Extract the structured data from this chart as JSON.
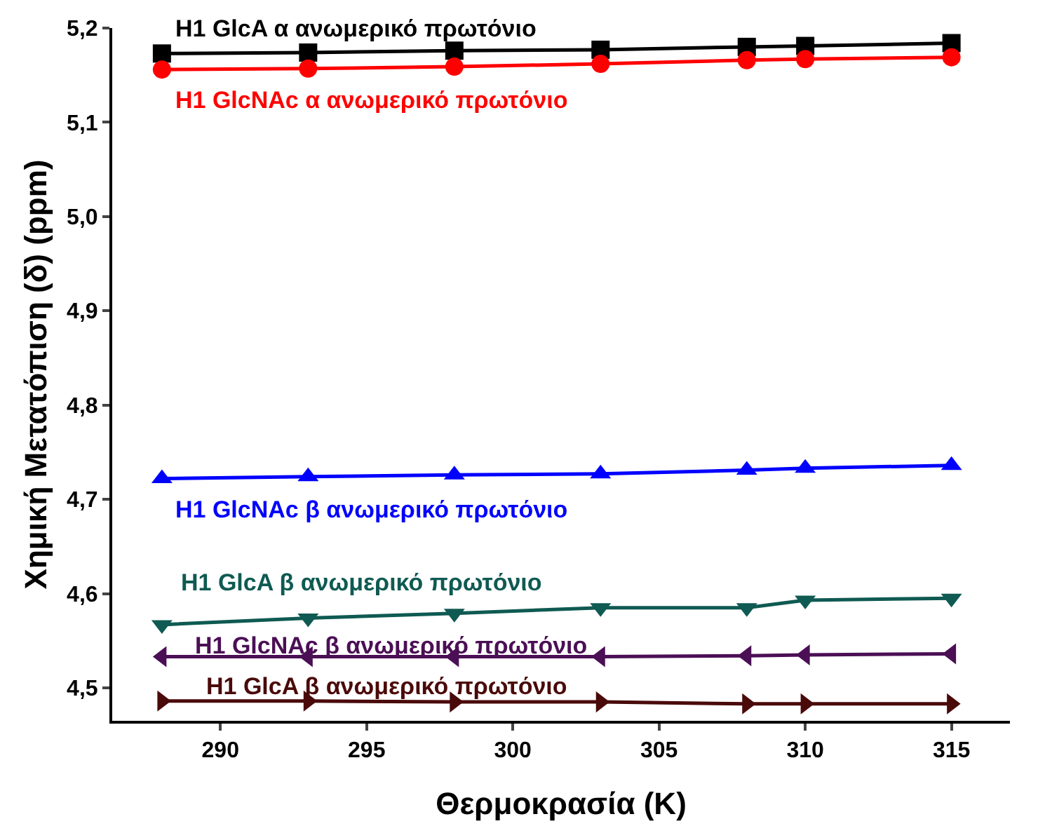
{
  "chart_data": {
    "type": "line",
    "xlabel": "Θερμοκρασία (K)",
    "ylabel": "Χημική Μετατόπιση (δ) (ppm)",
    "x": [
      288,
      293,
      298,
      303,
      308,
      310,
      315
    ],
    "series": [
      {
        "name": "H1 GlcA α ανωμερικό πρωτόνιο",
        "color": "#000000",
        "marker": "square",
        "values": [
          5.173,
          5.174,
          5.176,
          5.177,
          5.18,
          5.181,
          5.184
        ]
      },
      {
        "name": "H1 GlcNAc α ανωμερικό πρωτόνιο",
        "color": "#ff0000",
        "marker": "circle",
        "values": [
          5.156,
          5.157,
          5.159,
          5.162,
          5.166,
          5.167,
          5.169
        ]
      },
      {
        "name": "H1 GlcNAc β ανωμερικό πρωτόνιο",
        "color": "#0000ff",
        "marker": "triangle",
        "values": [
          4.722,
          4.724,
          4.726,
          4.727,
          4.731,
          4.733,
          4.736
        ]
      },
      {
        "name": "H1 GlcA β ανωμερικό πρωτόνιο",
        "color": "#0f5a52",
        "marker": "triangle-down",
        "values": [
          4.567,
          4.574,
          4.579,
          4.585,
          4.585,
          4.593,
          4.595
        ]
      },
      {
        "name": "H1 GlcNAc β ανωμερικό πρωτόνιο",
        "color": "#4b0f55",
        "marker": "triangle-left",
        "values": [
          4.533,
          4.533,
          4.533,
          4.533,
          4.534,
          4.535,
          4.536
        ]
      },
      {
        "name": "H1 GlcA β ανωμερικό πρωτόνιο",
        "color": "#4a0a0a",
        "marker": "triangle-right",
        "values": [
          4.486,
          4.486,
          4.485,
          4.485,
          4.483,
          4.483,
          4.483
        ]
      }
    ],
    "xlim": [
      286.3,
      317
    ],
    "xticks": [
      290,
      295,
      300,
      305,
      310,
      315
    ],
    "ylim": [
      4.465,
      5.2
    ],
    "yticks": [
      {
        "value": 4.5,
        "label": "4,5"
      },
      {
        "value": 4.6,
        "label": "4,6"
      },
      {
        "value": 4.7,
        "label": "4,7"
      },
      {
        "value": 4.8,
        "label": "4,8"
      },
      {
        "value": 4.9,
        "label": "4,9"
      },
      {
        "value": 5.0,
        "label": "5,0"
      },
      {
        "value": 5.1,
        "label": "5,1"
      },
      {
        "value": 5.2,
        "label": "5,2"
      }
    ],
    "legend": false,
    "line_style": "solid"
  }
}
